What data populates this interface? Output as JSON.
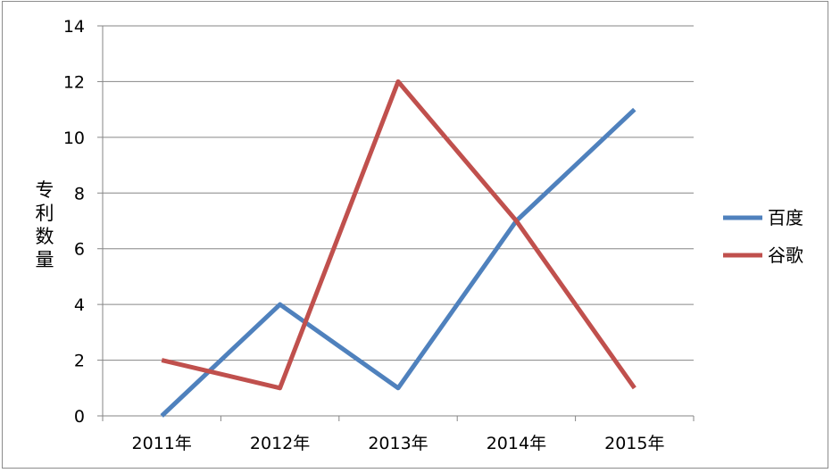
{
  "chart_data": {
    "type": "line",
    "title": "",
    "xlabel": "",
    "ylabel": "专利数量",
    "categories": [
      "2011年",
      "2012年",
      "2013年",
      "2014年",
      "2015年"
    ],
    "ylim": [
      0,
      14
    ],
    "yticks": [
      0,
      2,
      4,
      6,
      8,
      10,
      12,
      14
    ],
    "grid": true,
    "legend_position": "right",
    "series": [
      {
        "name": "百度",
        "values": [
          0,
          4,
          1,
          7,
          11
        ],
        "color": "#4f81bd"
      },
      {
        "name": "谷歌",
        "values": [
          2,
          1,
          12,
          7,
          1
        ],
        "color": "#c0504d"
      }
    ]
  }
}
